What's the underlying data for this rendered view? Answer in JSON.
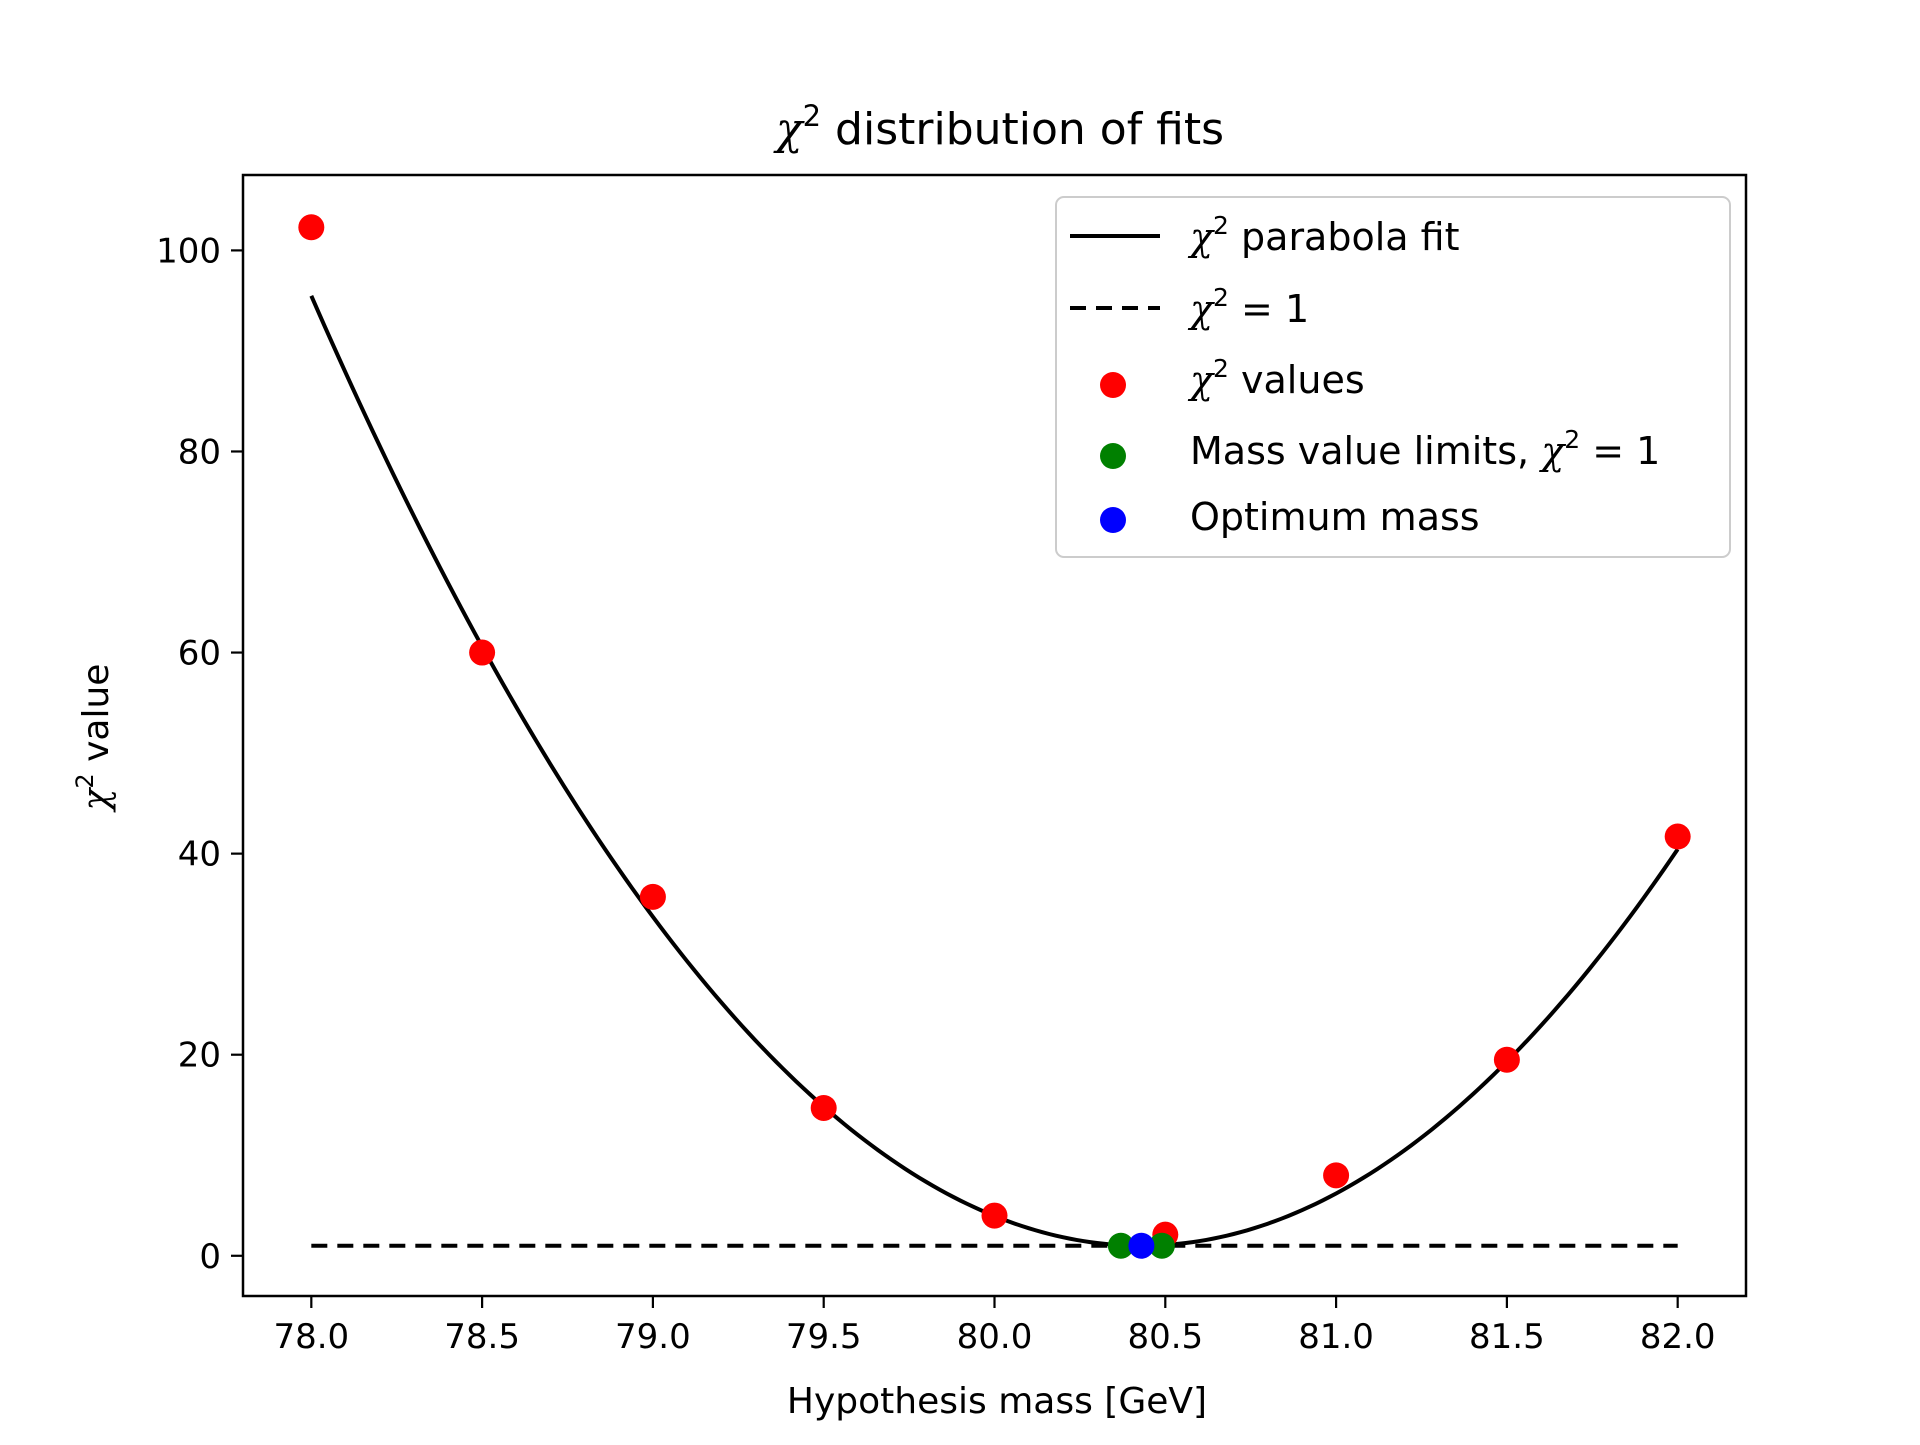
{
  "chart_data": {
    "type": "scatter",
    "title": {
      "symbol": "χ",
      "sup": "2",
      "text": "distribution of fits"
    },
    "xlabel": "Hypothesis mass [GeV]",
    "ylabel": {
      "symbol": "χ",
      "sup": "2",
      "text": "value"
    },
    "xlim": [
      77.8,
      82.2
    ],
    "ylim": [
      -4,
      107.5
    ],
    "xticks": [
      78.0,
      78.5,
      79.0,
      79.5,
      80.0,
      80.5,
      81.0,
      81.5,
      82.0
    ],
    "xtick_labels": [
      "78.0",
      "78.5",
      "79.0",
      "79.5",
      "80.0",
      "80.5",
      "81.0",
      "81.5",
      "82.0"
    ],
    "yticks": [
      0,
      20,
      40,
      60,
      80,
      100
    ],
    "ytick_labels": [
      "0",
      "20",
      "40",
      "60",
      "80",
      "100"
    ],
    "grid": false,
    "legend_position": "top-right",
    "series": [
      {
        "kind": "line",
        "legend": {
          "symbol": "χ",
          "sup": "2",
          "text": "parabola fit"
        },
        "color": "#000000",
        "style": "solid",
        "fit": {
          "vertex_x": 80.43,
          "vertex_y": 1.0,
          "curvature": 16.0,
          "x_range": [
            78.0,
            82.0
          ]
        }
      },
      {
        "kind": "line",
        "legend": {
          "symbol": "χ",
          "sup": "2",
          "text": "= 1"
        },
        "color": "#000000",
        "style": "dashed",
        "x": [
          78.0,
          82.0
        ],
        "y": [
          1.0,
          1.0
        ]
      },
      {
        "kind": "scatter",
        "legend": {
          "symbol": "χ",
          "sup": "2",
          "text": "values"
        },
        "color": "#ff0000",
        "x": [
          78.0,
          78.5,
          79.0,
          79.5,
          80.0,
          80.5,
          81.0,
          81.5,
          82.0
        ],
        "y": [
          102.3,
          60.0,
          35.7,
          14.7,
          4.0,
          2.1,
          8.0,
          19.5,
          41.7
        ]
      },
      {
        "kind": "scatter",
        "legend": {
          "symbol": "",
          "sup": "",
          "text": "Mass value limits,",
          "tail_symbol": "χ",
          "tail_sup": "2",
          "tail_text": "= 1"
        },
        "color": "#008000",
        "x": [
          80.37,
          80.49
        ],
        "y": [
          1.0,
          1.0
        ]
      },
      {
        "kind": "scatter",
        "legend": {
          "symbol": "",
          "sup": "",
          "text": "Optimum mass"
        },
        "color": "#0000ff",
        "x": [
          80.43
        ],
        "y": [
          1.0
        ]
      }
    ]
  }
}
